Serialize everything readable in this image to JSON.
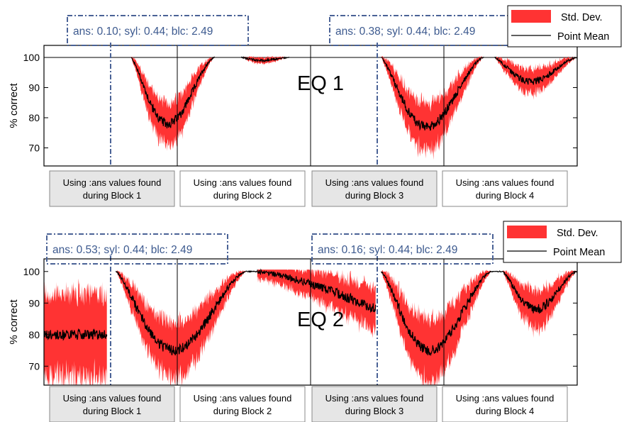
{
  "chart_data": [
    {
      "type": "area",
      "panel_label": "EQ 1",
      "ylabel": "% correct",
      "ylim": [
        64,
        104
      ],
      "xlim": [
        0,
        1000
      ],
      "yticks": [
        70,
        80,
        90,
        100
      ],
      "grid": false,
      "legend_position": "top-right",
      "series": [
        {
          "name": "Std. Dev.",
          "color": "#ff3333"
        },
        {
          "name": "Point Mean",
          "color": "#000000"
        }
      ],
      "segments": [
        {
          "x_start": 163,
          "x_end": 320,
          "pattern": "dip",
          "min_mean": 78,
          "sd": 7
        },
        {
          "x_start": 370,
          "x_end": 460,
          "pattern": "dip",
          "min_mean": 99,
          "sd": 1
        },
        {
          "x_start": 632,
          "x_end": 825,
          "pattern": "dip",
          "min_mean": 77,
          "sd": 8
        },
        {
          "x_start": 845,
          "x_end": 1000,
          "pattern": "dip",
          "min_mean": 92,
          "sd": 4
        }
      ],
      "reference_line": 100,
      "vertical_lines": [
        250,
        500,
        750
      ],
      "dashed_lines": [
        125,
        625
      ],
      "annotations": [
        "ans: 0.10; syl: 0.44; blc: 2.49",
        "ans: 0.38; syl: 0.44; blc: 2.49"
      ],
      "blocks": [
        {
          "label": "Using :ans values found during Block 1",
          "shaded": true
        },
        {
          "label": "Using :ans values found during Block 2",
          "shaded": false
        },
        {
          "label": "Using :ans values found during Block 3",
          "shaded": true
        },
        {
          "label": "Using :ans values found during Block 4",
          "shaded": false
        }
      ]
    },
    {
      "type": "area",
      "panel_label": "EQ 2",
      "ylabel": "% correct",
      "ylim": [
        64,
        104
      ],
      "xlim": [
        0,
        1000
      ],
      "yticks": [
        70,
        80,
        90,
        100
      ],
      "grid": false,
      "legend_position": "top-right",
      "series": [
        {
          "name": "Std. Dev.",
          "color": "#ff3333"
        },
        {
          "name": "Point Mean",
          "color": "#000000"
        }
      ],
      "segments": [
        {
          "x_start": 0,
          "x_end": 118,
          "pattern": "flat",
          "mean": 80,
          "sd": 13
        },
        {
          "x_start": 135,
          "x_end": 380,
          "pattern": "dip",
          "min_mean": 75,
          "sd": 9
        },
        {
          "x_start": 380,
          "x_end": 400,
          "pattern": "flat",
          "mean": 100,
          "sd": 0
        },
        {
          "x_start": 400,
          "x_end": 622,
          "pattern": "slope",
          "start_mean": 100,
          "end_mean": 88,
          "sd": 7
        },
        {
          "x_start": 632,
          "x_end": 840,
          "pattern": "dip",
          "min_mean": 75,
          "sd": 10
        },
        {
          "x_start": 840,
          "x_end": 860,
          "pattern": "flat",
          "mean": 100,
          "sd": 0
        },
        {
          "x_start": 860,
          "x_end": 1000,
          "pattern": "dip",
          "min_mean": 88,
          "sd": 6
        }
      ],
      "vertical_lines": [
        250,
        500,
        750
      ],
      "dashed_lines": [
        125,
        625
      ],
      "annotations": [
        "ans: 0.53; syl: 0.44; blc: 2.49",
        "ans: 0.16; syl: 0.44; blc: 2.49"
      ],
      "blocks": [
        {
          "label": "Using :ans values found during Block 1",
          "shaded": true
        },
        {
          "label": "Using :ans values found during Block 2",
          "shaded": false
        },
        {
          "label": "Using :ans values found during Block 3",
          "shaded": true
        },
        {
          "label": "Using :ans values found during Block 4",
          "shaded": false
        }
      ]
    }
  ]
}
